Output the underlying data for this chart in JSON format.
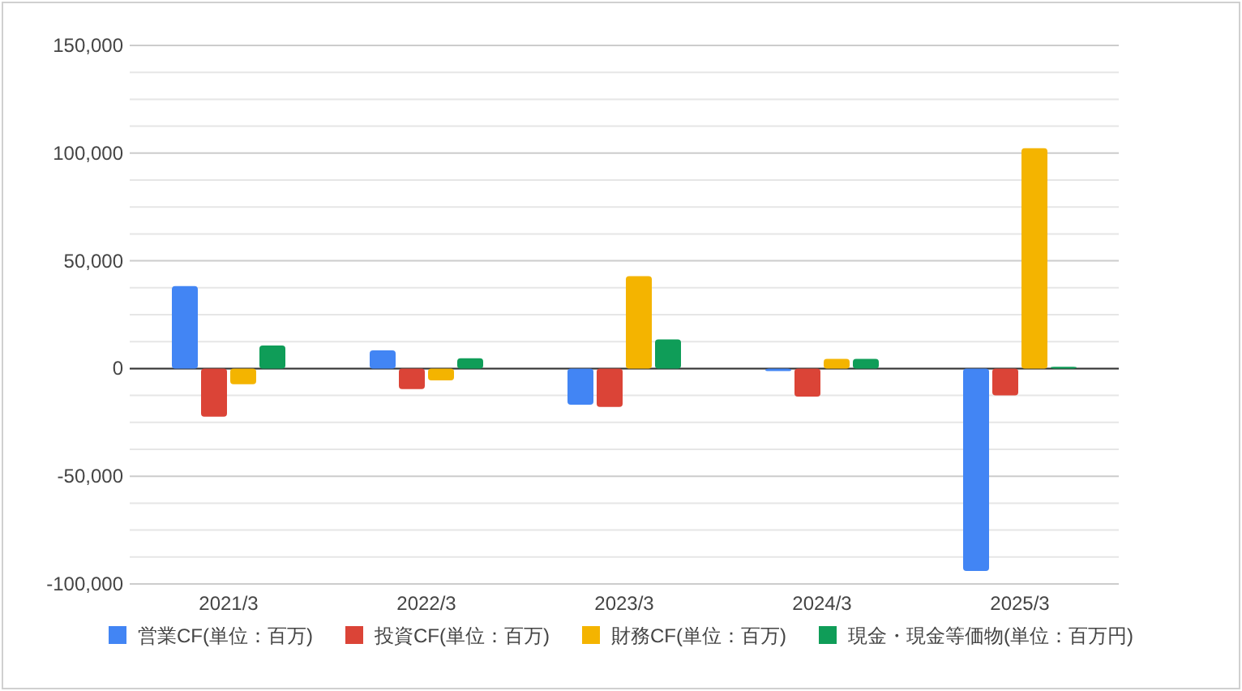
{
  "chart_data": {
    "type": "bar",
    "categories": [
      "2021/3",
      "2022/3",
      "2023/3",
      "2024/3",
      "2025/3"
    ],
    "series": [
      {
        "name": "営業CF(単位：百万)",
        "color": "#4285f4",
        "values": [
          38300,
          8400,
          -16800,
          -1200,
          -94000
        ]
      },
      {
        "name": "投資CF(単位：百万)",
        "color": "#db4437",
        "values": [
          -22300,
          -9500,
          -17800,
          -13000,
          -12500
        ]
      },
      {
        "name": "財務CF(単位：百万)",
        "color": "#f4b400",
        "values": [
          -7300,
          -5500,
          42900,
          4500,
          102300
        ]
      },
      {
        "name": "現金・現金等価物(単位：百万円)",
        "color": "#0f9d58",
        "values": [
          10700,
          4800,
          13500,
          4500,
          800
        ]
      }
    ],
    "ylim": [
      -100000,
      150000
    ],
    "yticks": [
      {
        "value": -100000,
        "label": "-100,000"
      },
      {
        "value": -87500,
        "label": null
      },
      {
        "value": -75000,
        "label": null
      },
      {
        "value": -62500,
        "label": null
      },
      {
        "value": -50000,
        "label": "-50,000"
      },
      {
        "value": -37500,
        "label": null
      },
      {
        "value": -25000,
        "label": null
      },
      {
        "value": -12500,
        "label": null
      },
      0,
      {
        "value": 12500,
        "label": null
      },
      {
        "value": 25000,
        "label": null
      },
      {
        "value": 37500,
        "label": null
      },
      {
        "value": 50000,
        "label": "50,000"
      },
      {
        "value": 62500,
        "label": null
      },
      {
        "value": 75000,
        "label": null
      },
      {
        "value": 87500,
        "label": null
      },
      {
        "value": 100000,
        "label": "100,000"
      },
      {
        "value": 112500,
        "label": null
      },
      {
        "value": 125000,
        "label": null
      },
      {
        "value": 137500,
        "label": null
      },
      {
        "value": 150000,
        "label": "150,000"
      }
    ],
    "grid": "y",
    "legend": "bottom"
  }
}
